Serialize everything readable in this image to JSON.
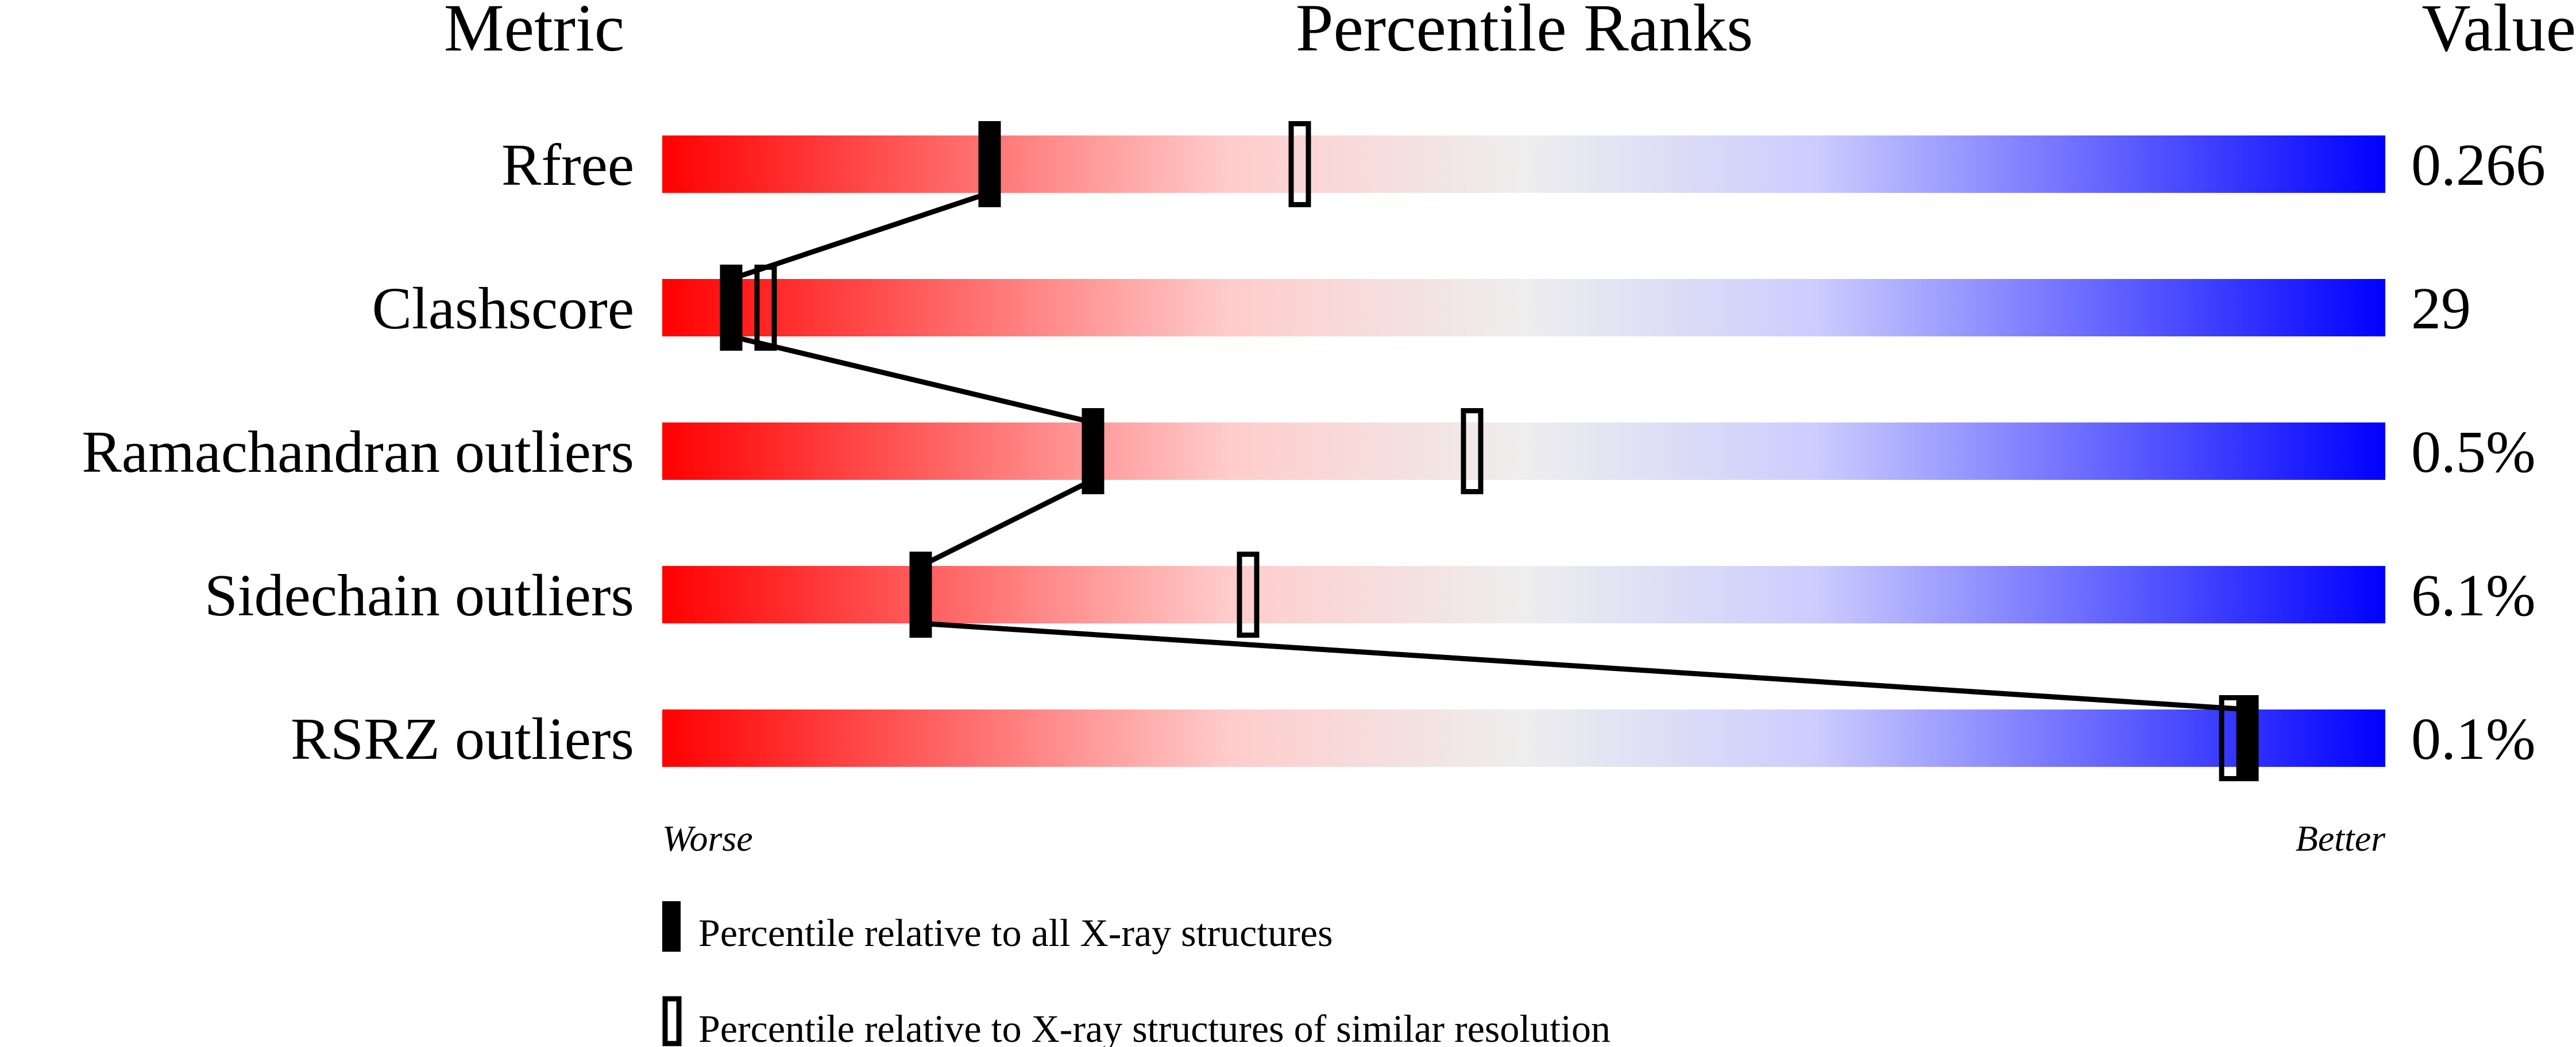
{
  "chart_data": {
    "type": "percentile-slider",
    "headers": {
      "metric": "Metric",
      "ranks": "Percentile Ranks",
      "value": "Value"
    },
    "xlim": [
      0,
      100
    ],
    "axis_labels": {
      "left": "Worse",
      "right": "Better"
    },
    "gradient_colors": [
      "#ff0000",
      "#ffcccc",
      "#eeeeee",
      "#ccccff",
      "#0000ff"
    ],
    "rows": [
      {
        "metric": "Rfree",
        "value": "0.266",
        "percentile_all": 19,
        "percentile_similar": 37
      },
      {
        "metric": "Clashscore",
        "value": "29",
        "percentile_all": 4,
        "percentile_similar": 6
      },
      {
        "metric": "Ramachandran outliers",
        "value": "0.5%",
        "percentile_all": 25,
        "percentile_similar": 47
      },
      {
        "metric": "Sidechain outliers",
        "value": "6.1%",
        "percentile_all": 15,
        "percentile_similar": 34
      },
      {
        "metric": "RSRZ outliers",
        "value": "0.1%",
        "percentile_all": 92,
        "percentile_similar": 91
      }
    ],
    "legend": [
      {
        "marker": "filled",
        "label": "Percentile relative to all X-ray structures"
      },
      {
        "marker": "open",
        "label": "Percentile relative to X-ray structures of similar resolution"
      }
    ]
  }
}
